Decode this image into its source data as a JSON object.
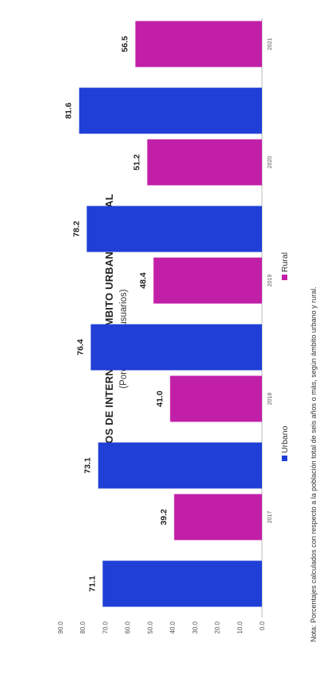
{
  "chart_data": {
    "type": "bar",
    "orientation": "vertical",
    "title": "USUARIOS DE INTERNET EN ÁMBITO URBANO Y RURAL",
    "subtitle": "(Porcentaje de usuarios)",
    "categories": [
      "2017",
      "2018",
      "2019",
      "2020",
      "2021"
    ],
    "series": [
      {
        "name": "Urbano",
        "color": "#1f3fd6",
        "values": [
          71.1,
          73.1,
          76.4,
          78.2,
          81.6
        ]
      },
      {
        "name": "Rural",
        "color": "#c21fa8",
        "values": [
          39.2,
          41.0,
          48.4,
          51.2,
          56.5
        ]
      }
    ],
    "yticks": [
      "0.0",
      "10.0",
      "20.0",
      "30.0",
      "40.0",
      "50.0",
      "60.0",
      "70.0",
      "80.0",
      "90.0"
    ],
    "ylim": [
      0,
      90
    ],
    "grid": false,
    "legend": "bottom",
    "note": "Nota: Porcentajes calculados con respecto a la población total de seis años o más, según ámbito urbano y rural."
  }
}
